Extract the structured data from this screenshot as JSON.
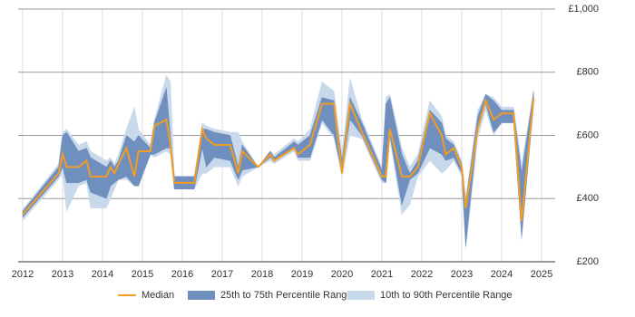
{
  "chart_data": {
    "type": "line",
    "x": [
      2012.0,
      2012.9,
      2013.0,
      2013.1,
      2013.4,
      2013.6,
      2013.7,
      2014.1,
      2014.2,
      2014.3,
      2014.4,
      2014.6,
      2014.8,
      2014.9,
      2015.2,
      2015.3,
      2015.6,
      2015.7,
      2015.8,
      2016.3,
      2016.5,
      2016.6,
      2016.8,
      2017.2,
      2017.4,
      2017.5,
      2017.9,
      2018.2,
      2018.3,
      2018.8,
      2018.9,
      2019.2,
      2019.5,
      2019.8,
      2020.0,
      2020.2,
      2020.5,
      2021.0,
      2021.1,
      2021.2,
      2021.5,
      2021.7,
      2021.9,
      2022.2,
      2022.5,
      2022.6,
      2022.8,
      2023.0,
      2023.1,
      2023.4,
      2023.6,
      2023.8,
      2024.0,
      2024.3,
      2024.5,
      2024.8
    ],
    "series": [
      {
        "name": "10th to 90th Percentile Range",
        "color": "#c9d9ec",
        "low": [
          330,
          460,
          480,
          360,
          440,
          450,
          370,
          370,
          400,
          430,
          460,
          460,
          440,
          440,
          540,
          530,
          550,
          540,
          430,
          430,
          480,
          480,
          500,
          500,
          440,
          470,
          500,
          520,
          510,
          550,
          520,
          520,
          640,
          590,
          470,
          600,
          590,
          450,
          450,
          590,
          350,
          380,
          470,
          520,
          480,
          490,
          520,
          470,
          240,
          590,
          680,
          600,
          640,
          640,
          270,
          690
        ],
        "high": [
          365,
          510,
          610,
          620,
          570,
          580,
          550,
          520,
          530,
          510,
          540,
          620,
          690,
          620,
          570,
          650,
          790,
          770,
          470,
          470,
          640,
          630,
          620,
          610,
          610,
          580,
          500,
          550,
          540,
          590,
          580,
          620,
          770,
          740,
          540,
          780,
          650,
          500,
          720,
          730,
          560,
          500,
          540,
          710,
          660,
          600,
          580,
          520,
          400,
          680,
          730,
          720,
          690,
          690,
          510,
          740
        ]
      },
      {
        "name": "25th to 75th Percentile Range",
        "color": "#6f8fbf",
        "low": [
          340,
          470,
          500,
          450,
          450,
          460,
          420,
          400,
          440,
          450,
          460,
          470,
          440,
          440,
          540,
          540,
          560,
          560,
          430,
          430,
          560,
          500,
          530,
          520,
          460,
          490,
          500,
          530,
          520,
          560,
          530,
          530,
          650,
          600,
          480,
          650,
          600,
          460,
          450,
          600,
          380,
          460,
          480,
          560,
          540,
          520,
          530,
          480,
          250,
          620,
          700,
          610,
          640,
          640,
          280,
          700
        ],
        "high": [
          360,
          500,
          600,
          610,
          550,
          560,
          530,
          500,
          520,
          500,
          520,
          600,
          580,
          600,
          560,
          640,
          750,
          600,
          470,
          470,
          620,
          620,
          610,
          600,
          500,
          570,
          500,
          550,
          530,
          580,
          570,
          600,
          720,
          710,
          520,
          720,
          640,
          490,
          700,
          720,
          540,
          480,
          520,
          680,
          640,
          590,
          570,
          510,
          390,
          660,
          730,
          710,
          680,
          680,
          480,
          740
        ]
      },
      {
        "name": "Median",
        "color": "#f29c23",
        "values": [
          350,
          480,
          540,
          500,
          500,
          520,
          470,
          470,
          500,
          480,
          510,
          560,
          470,
          550,
          550,
          630,
          650,
          570,
          450,
          450,
          620,
          590,
          570,
          570,
          480,
          550,
          500,
          540,
          520,
          560,
          540,
          570,
          700,
          700,
          480,
          700,
          610,
          470,
          470,
          620,
          470,
          470,
          500,
          670,
          600,
          540,
          560,
          500,
          370,
          620,
          710,
          650,
          670,
          670,
          330,
          720
        ]
      }
    ],
    "xlim": [
      2012,
      2025
    ],
    "xticks": [
      2012,
      2013,
      2014,
      2015,
      2016,
      2017,
      2018,
      2019,
      2020,
      2021,
      2022,
      2023,
      2024,
      2025
    ],
    "ylim": [
      200,
      1000
    ],
    "yticks": [
      {
        "value": 200,
        "label": "£200"
      },
      {
        "value": 400,
        "label": "£400"
      },
      {
        "value": 600,
        "label": "£600"
      },
      {
        "value": 800,
        "label": "£800"
      },
      {
        "value": 1000,
        "label": "£1,000"
      }
    ],
    "grid": true
  }
}
